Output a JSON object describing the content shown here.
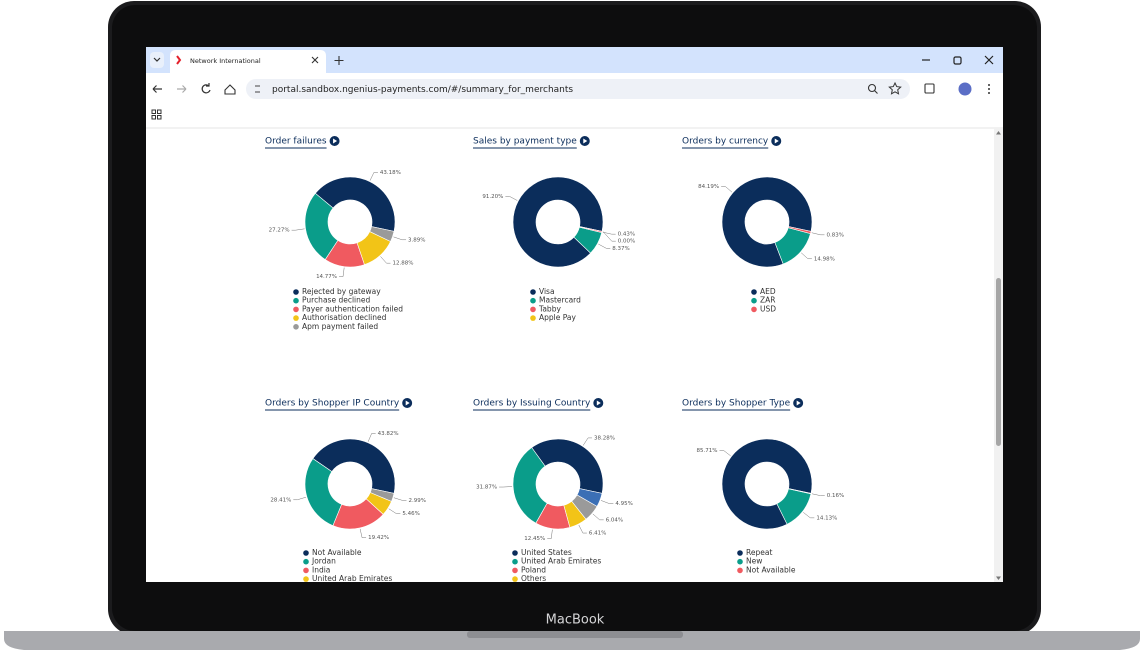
{
  "browser": {
    "tab_title": "Network International",
    "url": "portal.sandbox.ngenius-payments.com/#/summary_for_merchants"
  },
  "device": {
    "label": "MacBook"
  },
  "chart_data": [
    {
      "type": "pie",
      "title": "Order failures",
      "categories": [
        "Rejected by gateway",
        "Purchase declined",
        "Payer authentication failed",
        "Authorisation declined",
        "Apm payment failed"
      ],
      "values": [
        43.18,
        27.27,
        14.77,
        12.88,
        3.89
      ],
      "value_labels": [
        "43.18%",
        "27.27%",
        "14.77%",
        "12.88%",
        "3.89%"
      ],
      "colors": [
        "#0b2d5b",
        "#0a9d8a",
        "#f05a60",
        "#f2c417",
        "#9a9a9a"
      ]
    },
    {
      "type": "pie",
      "title": "Sales by payment type",
      "categories": [
        "Visa",
        "Mastercard",
        "Tabby",
        "Apple Pay"
      ],
      "values": [
        91.2,
        8.37,
        0.43,
        0
      ],
      "value_labels": [
        "91.20%",
        "8.37%",
        "0.43%",
        "0.00%"
      ],
      "colors": [
        "#0b2d5b",
        "#0a9d8a",
        "#f05a60",
        "#f2c417"
      ]
    },
    {
      "type": "pie",
      "title": "Orders by currency",
      "categories": [
        "AED",
        "ZAR",
        "USD"
      ],
      "values": [
        84.19,
        14.98,
        0.83
      ],
      "value_labels": [
        "84.19%",
        "14.98%",
        "0.83%"
      ],
      "colors": [
        "#0b2d5b",
        "#0a9d8a",
        "#f05a60"
      ]
    },
    {
      "type": "pie",
      "title": "Orders by Shopper IP Country",
      "categories": [
        "Not Available",
        "Jordan",
        "India",
        "United Arab Emirates",
        null
      ],
      "values": [
        43.82,
        28.41,
        19.42,
        5.46,
        2.99
      ],
      "value_labels": [
        "43.82%",
        "28.41%",
        "19.42%",
        "5.46%",
        "2.99%"
      ],
      "colors": [
        "#0b2d5b",
        "#0a9d8a",
        "#f05a60",
        "#f2c417",
        "#9a9a9a"
      ]
    },
    {
      "type": "pie",
      "title": "Orders by Issuing Country",
      "categories": [
        "United States",
        "United Arab Emirates",
        "Poland",
        "Others",
        null,
        null
      ],
      "values": [
        38.28,
        31.87,
        12.45,
        6.41,
        6.04,
        4.95
      ],
      "value_labels": [
        "38.28%",
        "31.87%",
        "12.45%",
        "6.41%",
        "6.04%",
        "4.95%"
      ],
      "colors": [
        "#0b2d5b",
        "#0a9d8a",
        "#f05a60",
        "#f2c417",
        "#9a9a9a",
        "#3b6fb5"
      ]
    },
    {
      "type": "pie",
      "title": "Orders by Shopper Type",
      "categories": [
        "Repeat",
        "New",
        "Not Available"
      ],
      "values": [
        85.71,
        14.13,
        0.16
      ],
      "value_labels": [
        "85.71%",
        "14.13%",
        "0.16%"
      ],
      "colors": [
        "#0b2d5b",
        "#0a9d8a",
        "#f05a60"
      ]
    }
  ]
}
